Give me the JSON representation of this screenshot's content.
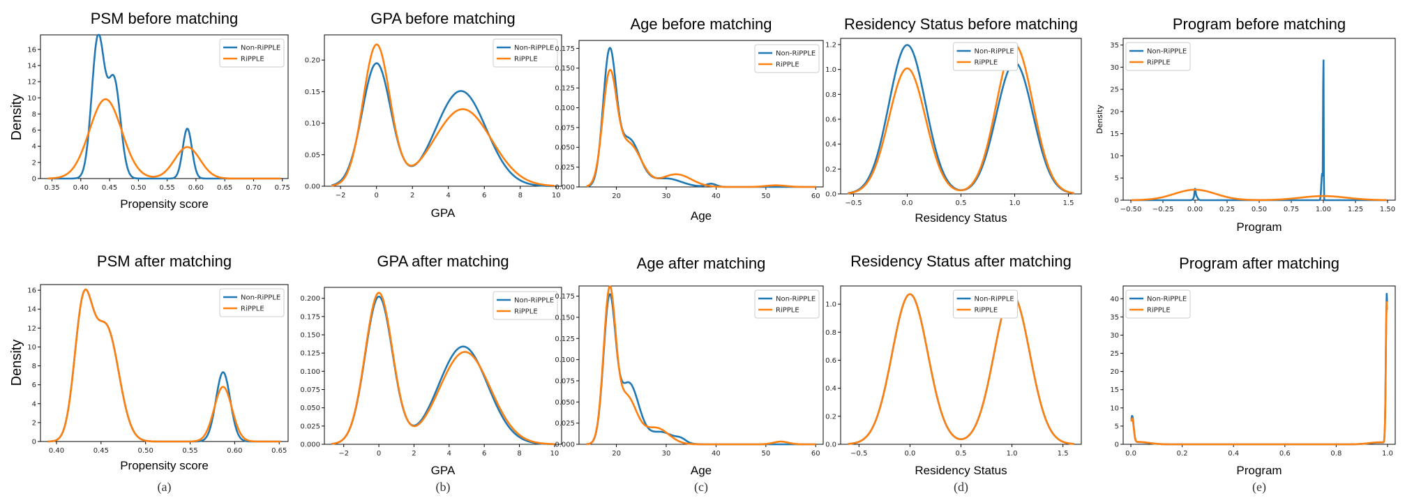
{
  "colors": {
    "non_ripple": "#1f77b4",
    "ripple": "#ff7f0e"
  },
  "legend": {
    "series1": "Non-RiPPLE",
    "series2": "RiPPLE"
  },
  "row_ylabel": "Density",
  "chart_data": [
    {
      "id": "psm-before",
      "type": "line",
      "title": "PSM before matching",
      "xlabel": "Propensity score",
      "ylabel": "",
      "xlim": [
        0.33,
        0.76
      ],
      "ylim": [
        0,
        17.8
      ],
      "xticks": [
        0.35,
        0.4,
        0.45,
        0.5,
        0.55,
        0.6,
        0.65,
        0.7,
        0.75
      ],
      "yticks": [
        0,
        2,
        4,
        6,
        8,
        10,
        12,
        14,
        16
      ],
      "subfig": "",
      "series": [
        {
          "name": "Non-RiPPLE",
          "mixture": [
            [
              0.43,
              0.011,
              0.48
            ],
            [
              0.458,
              0.011,
              0.33
            ],
            [
              0.585,
              0.008,
              0.124
            ]
          ]
        },
        {
          "name": "RiPPLE",
          "mixture": [
            [
              0.443,
              0.028,
              0.69
            ],
            [
              0.585,
              0.022,
              0.215
            ]
          ]
        }
      ]
    },
    {
      "id": "gpa-before",
      "type": "line",
      "title": "GPA before matching",
      "xlabel": "GPA",
      "ylabel": "",
      "xlim": [
        -2.9,
        10.3
      ],
      "ylim": [
        0,
        0.24
      ],
      "xticks": [
        -2,
        0,
        2,
        4,
        6,
        8,
        10
      ],
      "yticks": [
        0,
        0.05,
        0.1,
        0.15,
        0.2
      ],
      "subfig": "",
      "series": [
        {
          "name": "Non-RiPPLE",
          "mixture": [
            [
              0,
              0.8,
              0.39
            ],
            [
              4.7,
              1.4,
              0.53
            ]
          ]
        },
        {
          "name": "RiPPLE",
          "mixture": [
            [
              0,
              0.75,
              0.42
            ],
            [
              4.8,
              1.6,
              0.49
            ]
          ]
        }
      ]
    },
    {
      "id": "age-before",
      "type": "line",
      "title": "Age before matching",
      "xlabel": "Age",
      "ylabel": "",
      "xlim": [
        12.5,
        61.5
      ],
      "ylim": [
        0,
        0.185
      ],
      "xticks": [
        20,
        30,
        40,
        50,
        60
      ],
      "yticks": [
        0,
        0.025,
        0.05,
        0.075,
        0.1,
        0.125,
        0.15,
        0.175
      ],
      "subfig": "",
      "series": [
        {
          "name": "Non-RiPPLE",
          "mixture": [
            [
              18.6,
              1.3,
              0.53
            ],
            [
              22.5,
              2.2,
              0.33
            ],
            [
              30,
              3,
              0.08
            ],
            [
              39,
              1,
              0.01
            ]
          ]
        },
        {
          "name": "RiPPLE",
          "mixture": [
            [
              18.6,
              1.4,
              0.46
            ],
            [
              22.5,
              2.5,
              0.34
            ],
            [
              32,
              3,
              0.12
            ],
            [
              52,
              2,
              0.01
            ]
          ]
        }
      ]
    },
    {
      "id": "res-before",
      "type": "line",
      "title": "Residency Status before matching",
      "xlabel": "Residency Status",
      "ylabel": "",
      "xlim": [
        -0.62,
        1.62
      ],
      "ylim": [
        0,
        1.25
      ],
      "xticks": [
        -0.5,
        0,
        0.5,
        1,
        1.5
      ],
      "yticks": [
        0,
        0.2,
        0.4,
        0.6,
        0.8,
        1,
        1.2
      ],
      "subfig": "",
      "series": [
        {
          "name": "Non-RiPPLE",
          "mixture": [
            [
              0,
              0.17,
              0.51
            ],
            [
              1,
              0.17,
              0.45
            ]
          ]
        },
        {
          "name": "RiPPLE",
          "mixture": [
            [
              0,
              0.17,
              0.43
            ],
            [
              1,
              0.17,
              0.51
            ]
          ]
        }
      ]
    },
    {
      "id": "prog-before",
      "type": "line",
      "title": "Program before matching",
      "xlabel": "Program",
      "ylabel": "Density",
      "xlim": [
        -0.56,
        1.56
      ],
      "ylim": [
        0,
        36.5
      ],
      "xticks": [
        -0.5,
        -0.25,
        0,
        0.25,
        0.5,
        0.75,
        1,
        1.25,
        1.5
      ],
      "yticks": [
        0,
        5,
        10,
        15,
        20,
        25,
        30,
        35
      ],
      "subfig": "",
      "series": [
        {
          "name": "Non-RiPPLE",
          "mixture": [
            [
              0,
              0.004,
              0.016
            ],
            [
              0.005,
              0.012,
              0.035
            ],
            [
              1,
              0.002,
              0.175
            ],
            [
              0.99,
              0.006,
              0.09
            ]
          ]
        },
        {
          "name": "RiPPLE",
          "mixture": [
            [
              0,
              0.16,
              0.95
            ],
            [
              1,
              0.18,
              0.42
            ]
          ]
        }
      ]
    },
    {
      "id": "psm-after",
      "type": "line",
      "title": "PSM after matching",
      "xlabel": "Propensity score",
      "ylabel": "",
      "xlim": [
        0.382,
        0.66
      ],
      "ylim": [
        0,
        16.6
      ],
      "xticks": [
        0.4,
        0.45,
        0.5,
        0.55,
        0.6,
        0.65
      ],
      "yticks": [
        0,
        2,
        4,
        6,
        8,
        10,
        12,
        14,
        16
      ],
      "subfig": "(a)",
      "series": [
        {
          "name": "Non-RiPPLE",
          "mixture": [
            [
              0.43,
              0.01,
              0.34
            ],
            [
              0.456,
              0.014,
              0.42
            ],
            [
              0.587,
              0.008,
              0.147
            ]
          ]
        },
        {
          "name": "RiPPLE",
          "mixture": [
            [
              0.43,
              0.01,
              0.34
            ],
            [
              0.456,
              0.014,
              0.42
            ],
            [
              0.587,
              0.01,
              0.145
            ]
          ]
        }
      ]
    },
    {
      "id": "gpa-after",
      "type": "line",
      "title": "GPA after matching",
      "xlabel": "GPA",
      "ylabel": "",
      "xlim": [
        -3.1,
        10.4
      ],
      "ylim": [
        0,
        0.215
      ],
      "xticks": [
        -2,
        0,
        2,
        4,
        6,
        8,
        10
      ],
      "yticks": [
        0,
        0.025,
        0.05,
        0.075,
        0.1,
        0.125,
        0.15,
        0.175,
        0.2
      ],
      "subfig": "(b)",
      "series": [
        {
          "name": "Non-RiPPLE",
          "mixture": [
            [
              0,
              0.78,
              0.395
            ],
            [
              4.8,
              1.4,
              0.47
            ]
          ]
        },
        {
          "name": "RiPPLE",
          "mixture": [
            [
              0,
              0.78,
              0.405
            ],
            [
              4.9,
              1.45,
              0.46
            ]
          ]
        }
      ]
    },
    {
      "id": "age-after",
      "type": "line",
      "title": "Age after matching",
      "xlabel": "Age",
      "ylabel": "",
      "xlim": [
        12.5,
        61.5
      ],
      "ylim": [
        0,
        0.187
      ],
      "xticks": [
        20,
        30,
        40,
        50,
        60
      ],
      "yticks": [
        0,
        0.025,
        0.05,
        0.075,
        0.1,
        0.125,
        0.15,
        0.175
      ],
      "subfig": "(c)",
      "series": [
        {
          "name": "Non-RiPPLE",
          "mixture": [
            [
              18.6,
              1.2,
              0.5
            ],
            [
              22.5,
              2,
              0.36
            ],
            [
              29,
              2.5,
              0.09
            ],
            [
              33,
              1,
              0.01
            ]
          ]
        },
        {
          "name": "RiPPLE",
          "mixture": [
            [
              18.6,
              1.2,
              0.52
            ],
            [
              22,
              2,
              0.28
            ],
            [
              28,
              2.5,
              0.12
            ],
            [
              53,
              1.5,
              0.012
            ]
          ]
        }
      ]
    },
    {
      "id": "res-after",
      "type": "line",
      "title": "Residency Status after matching",
      "xlabel": "Residency Status",
      "ylabel": "",
      "xlim": [
        -0.68,
        1.68
      ],
      "ylim": [
        0,
        1.13
      ],
      "xticks": [
        -0.5,
        0,
        0.5,
        1,
        1.5
      ],
      "yticks": [
        0,
        0.2,
        0.4,
        0.6,
        0.8,
        1
      ],
      "subfig": "(d)",
      "series": [
        {
          "name": "Non-RiPPLE",
          "mixture": [
            [
              0,
              0.175,
              0.47
            ],
            [
              1,
              0.175,
              0.47
            ]
          ]
        },
        {
          "name": "RiPPLE",
          "mixture": [
            [
              0,
              0.175,
              0.47
            ],
            [
              1,
              0.175,
              0.47
            ]
          ]
        }
      ]
    },
    {
      "id": "prog-after",
      "type": "line",
      "title": "Program after matching",
      "xlabel": "Program",
      "ylabel": "",
      "xlim": [
        -0.03,
        1.03
      ],
      "ylim": [
        0,
        43.5
      ],
      "xticks": [
        0,
        0.2,
        0.4,
        0.6,
        0.8,
        1
      ],
      "yticks": [
        0,
        5,
        10,
        15,
        20,
        25,
        30,
        35,
        40
      ],
      "subfig": "(e)",
      "series": [
        {
          "name": "Non-RiPPLE",
          "mixture": [
            [
              0.005,
              0.006,
              0.11
            ],
            [
              0.03,
              0.04,
              0.06
            ],
            [
              0.997,
              0.0035,
              0.36
            ],
            [
              0.97,
              0.04,
              0.05
            ]
          ]
        },
        {
          "name": "RiPPLE",
          "mixture": [
            [
              0.005,
              0.006,
              0.1
            ],
            [
              0.03,
              0.04,
              0.065
            ],
            [
              0.997,
              0.0035,
              0.34
            ],
            [
              0.97,
              0.04,
              0.055
            ]
          ]
        }
      ]
    }
  ]
}
